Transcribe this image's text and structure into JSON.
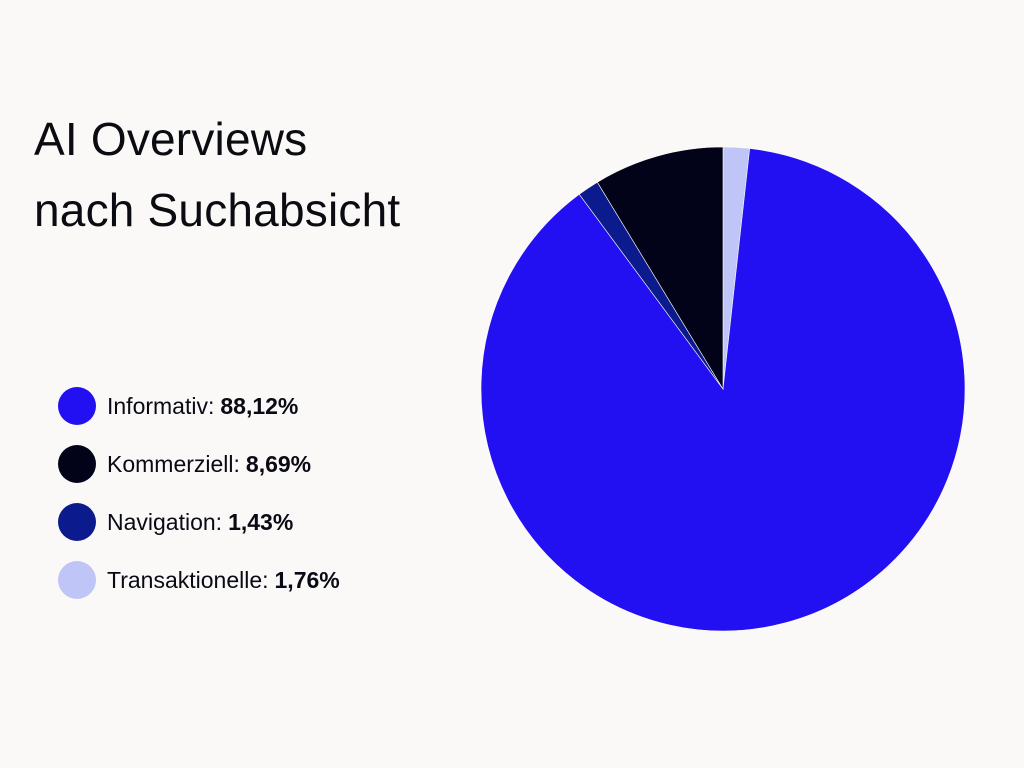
{
  "title_lines": [
    "AI Overviews",
    "nach Suchabsicht"
  ],
  "chart_data": {
    "type": "pie",
    "title": "AI Overviews nach Suchabsicht",
    "start_at": "top",
    "direction": "clockwise",
    "legend_position": "left",
    "slices": [
      {
        "label": "Transaktionelle:",
        "value_text": "1,76%",
        "value": 1.76,
        "color": "#bfc5f7"
      },
      {
        "label": "Informativ:",
        "value_text": "88,12%",
        "value": 88.12,
        "color": "#2210f2"
      },
      {
        "label": "Navigation:",
        "value_text": "1,43%",
        "value": 1.43,
        "color": "#0b1a8c"
      },
      {
        "label": "Kommerziell:",
        "value_text": "8,69%",
        "value": 8.69,
        "color": "#020318"
      }
    ]
  },
  "legend": [
    {
      "label": "Informativ:",
      "value": "88,12%",
      "color": "#2210f2"
    },
    {
      "label": "Kommerziell:",
      "value": "8,69%",
      "color": "#020318"
    },
    {
      "label": "Navigation:",
      "value": "1,43%",
      "color": "#0b1a8c"
    },
    {
      "label": "Transaktionelle:",
      "value": "1,76%",
      "color": "#bfc5f7"
    }
  ]
}
